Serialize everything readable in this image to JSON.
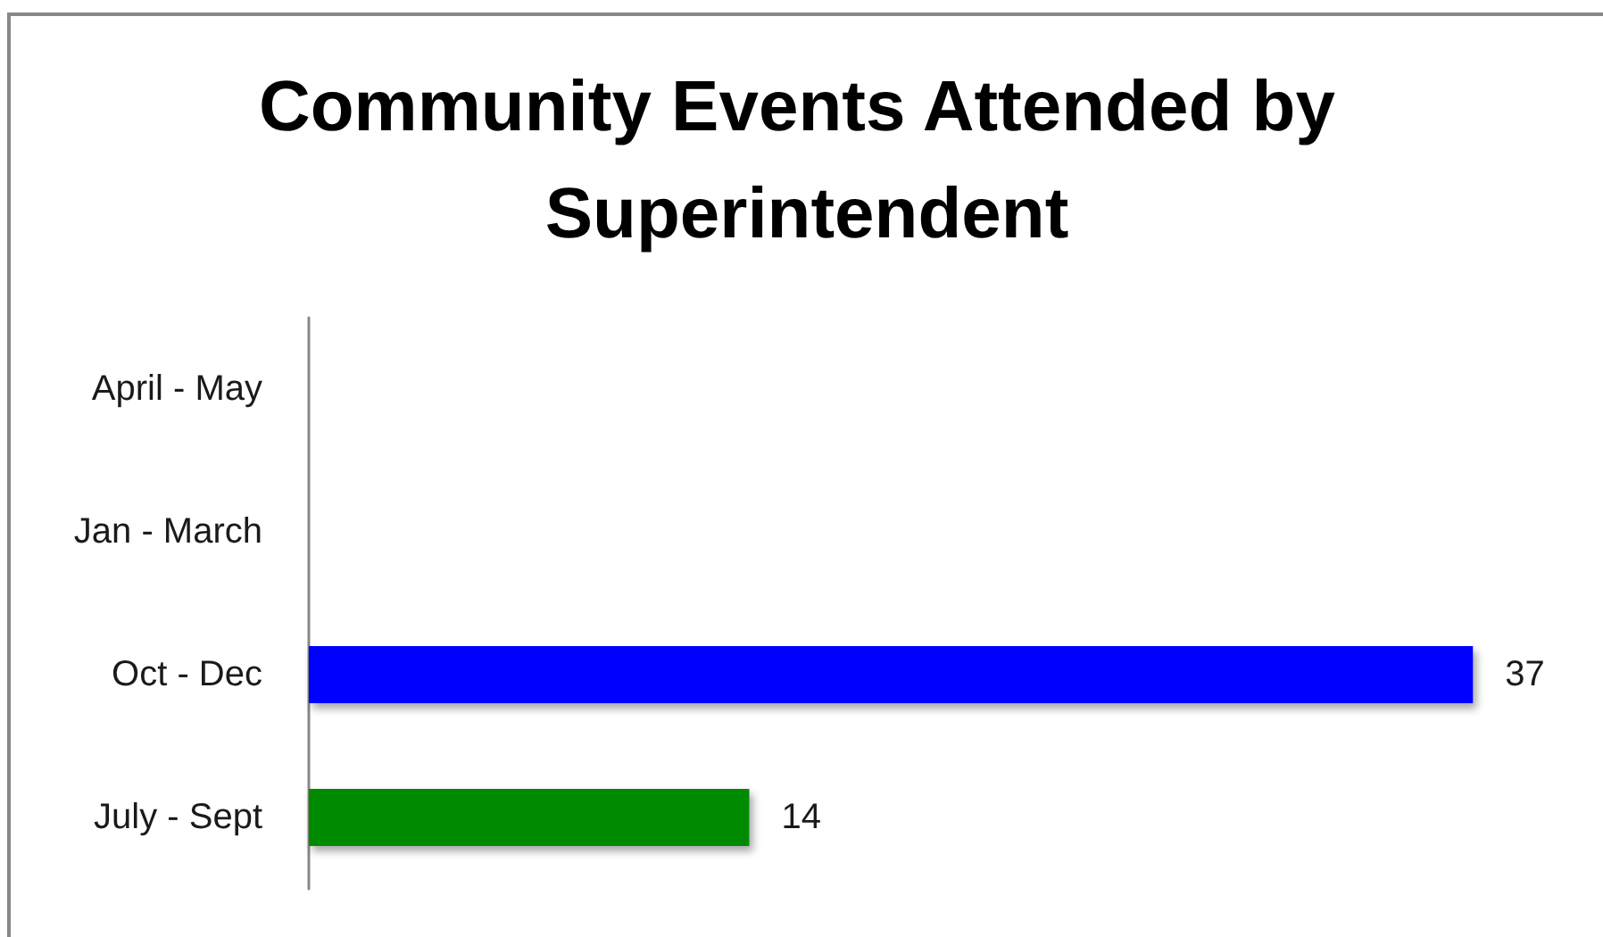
{
  "chart_data": {
    "type": "bar",
    "orientation": "horizontal",
    "title": "Community Events Attended by Superintendent",
    "categories": [
      "April - May",
      "Jan - March",
      "Oct - Dec",
      "July - Sept"
    ],
    "values": [
      null,
      null,
      37,
      14
    ],
    "colors": [
      null,
      null,
      "#0000ff",
      "#008a00"
    ],
    "data_labels": true,
    "grid": false,
    "tick_labels": "y"
  }
}
